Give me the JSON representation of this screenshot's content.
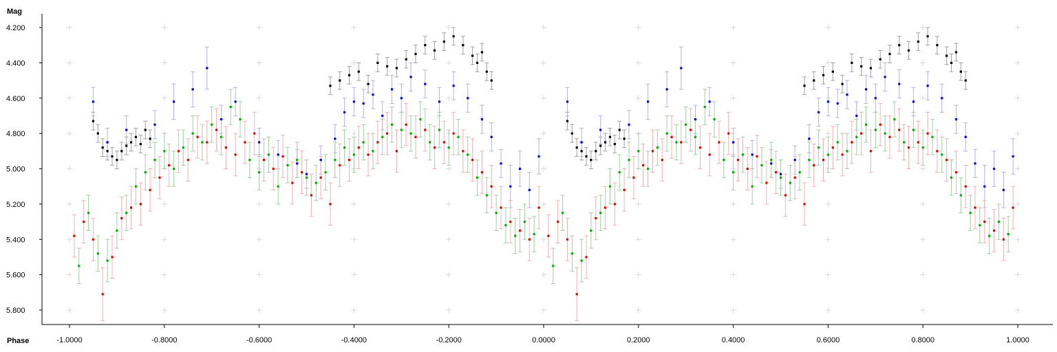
{
  "chart_data": {
    "type": "scatter",
    "title": "",
    "xlabel": "Phase",
    "ylabel": "Mag",
    "xlim": [
      -1.05,
      1.05
    ],
    "ylim": [
      5.88,
      4.14
    ],
    "y_inverted": true,
    "grid": "plus-markers",
    "x_ticks": [
      -1.0,
      -0.8,
      -0.6,
      -0.4,
      -0.2,
      0.0,
      0.2,
      0.4,
      0.6,
      0.8,
      1.0
    ],
    "x_tick_labels": [
      "-1.0000",
      "-0.8000",
      "-0.6000",
      "-0.4000",
      "-0.2000",
      "0.0000",
      "0.2000",
      "0.4000",
      "0.6000",
      "0.8000",
      "1.0000"
    ],
    "y_ticks": [
      4.2,
      4.4,
      4.6,
      4.8,
      5.0,
      5.2,
      5.4,
      5.6,
      5.8
    ],
    "y_tick_labels": [
      "4.200",
      "4.400",
      "4.600",
      "4.800",
      "5.000",
      "5.200",
      "5.400",
      "5.600",
      "5.800"
    ],
    "phase_fold": true,
    "series": [
      {
        "color": "#000000",
        "error_color": "#a0a0a0",
        "points": [
          [
            0.05,
            4.73,
            0.05
          ],
          [
            0.06,
            4.8,
            0.05
          ],
          [
            0.07,
            4.88,
            0.05
          ],
          [
            0.08,
            4.9,
            0.05
          ],
          [
            0.09,
            4.93,
            0.05
          ],
          [
            0.1,
            4.95,
            0.05
          ],
          [
            0.11,
            4.9,
            0.05
          ],
          [
            0.12,
            4.87,
            0.05
          ],
          [
            0.13,
            4.85,
            0.05
          ],
          [
            0.14,
            4.82,
            0.05
          ],
          [
            0.15,
            4.86,
            0.05
          ],
          [
            0.16,
            4.78,
            0.05
          ],
          [
            0.17,
            4.83,
            0.05
          ],
          [
            0.55,
            4.53,
            0.05
          ],
          [
            0.57,
            4.5,
            0.05
          ],
          [
            0.59,
            4.47,
            0.05
          ],
          [
            0.61,
            4.45,
            0.05
          ],
          [
            0.63,
            4.52,
            0.05
          ],
          [
            0.65,
            4.4,
            0.05
          ],
          [
            0.67,
            4.42,
            0.05
          ],
          [
            0.69,
            4.43,
            0.05
          ],
          [
            0.71,
            4.38,
            0.05
          ],
          [
            0.73,
            4.35,
            0.05
          ],
          [
            0.75,
            4.3,
            0.05
          ],
          [
            0.77,
            4.33,
            0.05
          ],
          [
            0.79,
            4.28,
            0.05
          ],
          [
            0.81,
            4.25,
            0.05
          ],
          [
            0.83,
            4.3,
            0.05
          ],
          [
            0.85,
            4.36,
            0.05
          ],
          [
            0.86,
            4.4,
            0.05
          ],
          [
            0.87,
            4.34,
            0.05
          ],
          [
            0.88,
            4.45,
            0.05
          ],
          [
            0.89,
            4.5,
            0.05
          ]
        ]
      },
      {
        "color": "#0000e0",
        "error_color": "#b0b0f0",
        "points": [
          [
            0.05,
            4.62,
            0.08
          ],
          [
            0.08,
            4.85,
            0.08
          ],
          [
            0.12,
            4.78,
            0.08
          ],
          [
            0.18,
            4.75,
            0.08
          ],
          [
            0.22,
            4.62,
            0.1
          ],
          [
            0.26,
            4.55,
            0.1
          ],
          [
            0.29,
            4.43,
            0.12
          ],
          [
            0.32,
            4.72,
            0.08
          ],
          [
            0.35,
            4.62,
            0.08
          ],
          [
            0.4,
            4.85,
            0.08
          ],
          [
            0.44,
            4.92,
            0.08
          ],
          [
            0.48,
            4.97,
            0.08
          ],
          [
            0.5,
            5.03,
            0.08
          ],
          [
            0.53,
            4.95,
            0.08
          ],
          [
            0.56,
            4.83,
            0.08
          ],
          [
            0.58,
            4.68,
            0.08
          ],
          [
            0.6,
            4.62,
            0.08
          ],
          [
            0.62,
            4.63,
            0.08
          ],
          [
            0.64,
            4.58,
            0.08
          ],
          [
            0.66,
            4.7,
            0.08
          ],
          [
            0.68,
            4.55,
            0.08
          ],
          [
            0.7,
            4.6,
            0.08
          ],
          [
            0.72,
            4.48,
            0.08
          ],
          [
            0.75,
            4.52,
            0.08
          ],
          [
            0.78,
            4.62,
            0.08
          ],
          [
            0.81,
            4.53,
            0.08
          ],
          [
            0.84,
            4.6,
            0.08
          ],
          [
            0.87,
            4.72,
            0.08
          ],
          [
            0.89,
            4.82,
            0.08
          ],
          [
            0.91,
            4.97,
            0.08
          ],
          [
            0.93,
            5.1,
            0.12
          ],
          [
            0.95,
            5.0,
            0.1
          ],
          [
            0.97,
            5.12,
            0.1
          ],
          [
            0.99,
            4.93,
            0.1
          ]
        ]
      },
      {
        "color": "#00b000",
        "error_color": "#a0cfa0",
        "points": [
          [
            0.02,
            5.55,
            0.1
          ],
          [
            0.04,
            5.25,
            0.1
          ],
          [
            0.06,
            5.48,
            0.1
          ],
          [
            0.08,
            5.52,
            0.12
          ],
          [
            0.1,
            5.35,
            0.1
          ],
          [
            0.12,
            5.25,
            0.1
          ],
          [
            0.14,
            5.1,
            0.1
          ],
          [
            0.16,
            5.02,
            0.1
          ],
          [
            0.18,
            4.95,
            0.1
          ],
          [
            0.2,
            4.9,
            0.1
          ],
          [
            0.22,
            5.0,
            0.1
          ],
          [
            0.24,
            4.88,
            0.1
          ],
          [
            0.26,
            4.8,
            0.1
          ],
          [
            0.28,
            4.85,
            0.1
          ],
          [
            0.3,
            4.75,
            0.1
          ],
          [
            0.32,
            4.82,
            0.1
          ],
          [
            0.34,
            4.65,
            0.1
          ],
          [
            0.36,
            4.72,
            0.1
          ],
          [
            0.38,
            4.95,
            0.1
          ],
          [
            0.4,
            5.02,
            0.1
          ],
          [
            0.42,
            4.92,
            0.1
          ],
          [
            0.44,
            5.1,
            0.1
          ],
          [
            0.46,
            4.98,
            0.1
          ],
          [
            0.48,
            4.95,
            0.1
          ],
          [
            0.5,
            5.05,
            0.1
          ],
          [
            0.52,
            5.08,
            0.1
          ],
          [
            0.54,
            5.02,
            0.1
          ],
          [
            0.56,
            4.95,
            0.1
          ],
          [
            0.58,
            4.88,
            0.1
          ],
          [
            0.6,
            4.92,
            0.1
          ],
          [
            0.62,
            4.85,
            0.1
          ],
          [
            0.64,
            4.9,
            0.1
          ],
          [
            0.66,
            4.82,
            0.1
          ],
          [
            0.68,
            4.75,
            0.1
          ],
          [
            0.7,
            4.78,
            0.1
          ],
          [
            0.72,
            4.8,
            0.1
          ],
          [
            0.74,
            4.72,
            0.1
          ],
          [
            0.76,
            4.85,
            0.1
          ],
          [
            0.78,
            4.78,
            0.1
          ],
          [
            0.8,
            4.88,
            0.1
          ],
          [
            0.82,
            4.82,
            0.1
          ],
          [
            0.84,
            4.92,
            0.1
          ],
          [
            0.86,
            5.05,
            0.1
          ],
          [
            0.88,
            5.15,
            0.1
          ],
          [
            0.9,
            5.25,
            0.1
          ],
          [
            0.92,
            5.32,
            0.1
          ],
          [
            0.94,
            5.38,
            0.1
          ],
          [
            0.96,
            5.3,
            0.1
          ],
          [
            0.98,
            5.37,
            0.1
          ]
        ]
      },
      {
        "color": "#e00000",
        "error_color": "#f0b0b0",
        "points": [
          [
            0.01,
            5.38,
            0.12
          ],
          [
            0.03,
            5.3,
            0.12
          ],
          [
            0.05,
            5.4,
            0.12
          ],
          [
            0.07,
            5.71,
            0.15
          ],
          [
            0.09,
            5.5,
            0.12
          ],
          [
            0.11,
            5.28,
            0.12
          ],
          [
            0.13,
            5.22,
            0.12
          ],
          [
            0.15,
            5.2,
            0.12
          ],
          [
            0.17,
            5.12,
            0.12
          ],
          [
            0.19,
            5.05,
            0.12
          ],
          [
            0.21,
            4.98,
            0.12
          ],
          [
            0.23,
            4.9,
            0.12
          ],
          [
            0.25,
            4.95,
            0.12
          ],
          [
            0.27,
            4.82,
            0.12
          ],
          [
            0.29,
            4.85,
            0.12
          ],
          [
            0.31,
            4.78,
            0.12
          ],
          [
            0.33,
            4.88,
            0.12
          ],
          [
            0.35,
            4.92,
            0.12
          ],
          [
            0.37,
            4.85,
            0.12
          ],
          [
            0.39,
            4.8,
            0.12
          ],
          [
            0.41,
            4.95,
            0.12
          ],
          [
            0.43,
            5.0,
            0.12
          ],
          [
            0.45,
            4.93,
            0.12
          ],
          [
            0.47,
            5.08,
            0.12
          ],
          [
            0.49,
            5.02,
            0.12
          ],
          [
            0.51,
            5.15,
            0.12
          ],
          [
            0.53,
            5.05,
            0.12
          ],
          [
            0.55,
            5.2,
            0.12
          ],
          [
            0.57,
            4.98,
            0.12
          ],
          [
            0.59,
            4.95,
            0.12
          ],
          [
            0.61,
            4.88,
            0.12
          ],
          [
            0.63,
            4.92,
            0.12
          ],
          [
            0.65,
            4.85,
            0.12
          ],
          [
            0.67,
            4.8,
            0.12
          ],
          [
            0.69,
            4.9,
            0.12
          ],
          [
            0.71,
            4.75,
            0.12
          ],
          [
            0.73,
            4.82,
            0.12
          ],
          [
            0.75,
            4.78,
            0.12
          ],
          [
            0.77,
            4.88,
            0.12
          ],
          [
            0.79,
            4.85,
            0.12
          ],
          [
            0.81,
            4.8,
            0.12
          ],
          [
            0.83,
            4.9,
            0.12
          ],
          [
            0.85,
            4.95,
            0.12
          ],
          [
            0.87,
            5.02,
            0.12
          ],
          [
            0.89,
            5.1,
            0.12
          ],
          [
            0.91,
            5.22,
            0.12
          ],
          [
            0.93,
            5.3,
            0.12
          ],
          [
            0.95,
            5.35,
            0.12
          ],
          [
            0.97,
            5.4,
            0.12
          ],
          [
            0.99,
            5.22,
            0.12
          ]
        ]
      }
    ]
  }
}
